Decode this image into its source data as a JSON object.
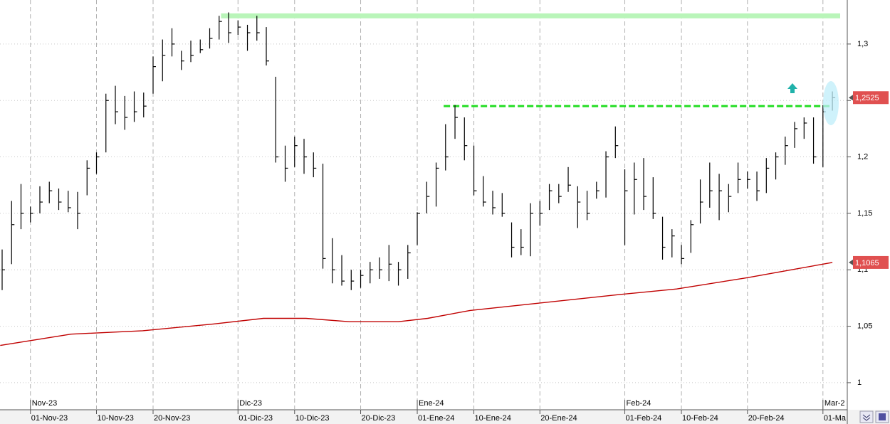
{
  "chart_data": {
    "type": "ohlc",
    "color": "#000000",
    "xlim": [
      -0.226,
      89.58
    ],
    "ylim": [
      0.976,
      1.339
    ],
    "grid": true,
    "xticks": [
      {
        "value": 3,
        "label": "01-Nov-23"
      },
      {
        "value": 10,
        "label": "10-Nov-23"
      },
      {
        "value": 16,
        "label": "20-Nov-23"
      },
      {
        "value": 25,
        "label": "01-Dic-23"
      },
      {
        "value": 31,
        "label": "10-Dic-23"
      },
      {
        "value": 38,
        "label": "20-Dic-23"
      },
      {
        "value": 44,
        "label": "01-Ene-24"
      },
      {
        "value": 50,
        "label": "10-Ene-24"
      },
      {
        "value": 57,
        "label": "20-Ene-24"
      },
      {
        "value": 66,
        "label": "01-Feb-24"
      },
      {
        "value": 72,
        "label": "10-Feb-24"
      },
      {
        "value": 79,
        "label": "20-Feb-24"
      },
      {
        "value": 87,
        "label": "01-Ma"
      }
    ],
    "month_ticks": [
      {
        "value": 3,
        "label": "Nov-23"
      },
      {
        "value": 25,
        "label": "Dic-23"
      },
      {
        "value": 44,
        "label": "Ene-24"
      },
      {
        "value": 66,
        "label": "Feb-24"
      },
      {
        "value": 87,
        "label": "Mar-2"
      }
    ],
    "yticks": [
      {
        "value": 1,
        "label": "1"
      },
      {
        "value": 1.05,
        "label": "1,05"
      },
      {
        "value": 1.1,
        "label": "1,1"
      },
      {
        "value": 1.15,
        "label": "1,15"
      },
      {
        "value": 1.2,
        "label": "1,2"
      },
      {
        "value": 1.25,
        "label": "1,25"
      },
      {
        "value": 1.3,
        "label": "1,3"
      }
    ],
    "high": [
      1.118,
      1.161,
      1.176,
      1.156,
      1.174,
      1.178,
      1.172,
      1.17,
      1.169,
      1.197,
      1.204,
      1.256,
      1.263,
      1.254,
      1.258,
      1.257,
      1.289,
      1.304,
      1.314,
      1.294,
      1.303,
      1.304,
      1.314,
      1.325,
      1.328,
      1.321,
      1.317,
      1.325,
      1.315,
      1.271,
      1.21,
      1.218,
      1.216,
      1.204,
      1.194,
      1.128,
      1.113,
      1.1,
      1.1,
      1.107,
      1.111,
      1.122,
      1.107,
      1.122,
      1.151,
      1.178,
      1.195,
      1.229,
      1.246,
      1.235,
      1.21,
      1.183,
      1.17,
      1.168,
      1.142,
      1.136,
      1.159,
      1.161,
      1.176,
      1.176,
      1.191,
      1.174,
      1.17,
      1.178,
      1.205,
      1.227,
      1.189,
      1.195,
      1.199,
      1.182,
      1.147,
      1.136,
      1.122,
      1.144,
      1.18,
      1.195,
      1.185,
      1.176,
      1.195,
      1.187,
      1.187,
      1.199,
      1.204,
      1.218,
      1.231,
      1.235,
      1.235,
      1.246,
      1.258
    ],
    "low": [
      1.082,
      1.105,
      1.136,
      1.142,
      1.15,
      1.159,
      1.153,
      1.151,
      1.136,
      1.166,
      1.185,
      1.204,
      1.229,
      1.224,
      1.231,
      1.235,
      1.256,
      1.267,
      1.289,
      1.277,
      1.284,
      1.292,
      1.296,
      1.304,
      1.301,
      1.308,
      1.294,
      1.303,
      1.281,
      1.195,
      1.178,
      1.191,
      1.185,
      1.182,
      1.101,
      1.088,
      1.086,
      1.082,
      1.084,
      1.088,
      1.092,
      1.09,
      1.086,
      1.092,
      1.122,
      1.15,
      1.156,
      1.188,
      1.216,
      1.197,
      1.166,
      1.156,
      1.149,
      1.147,
      1.111,
      1.113,
      1.112,
      1.139,
      1.153,
      1.159,
      1.169,
      1.137,
      1.144,
      1.163,
      1.164,
      1.199,
      1.122,
      1.149,
      1.153,
      1.145,
      1.109,
      1.111,
      1.105,
      1.115,
      1.141,
      1.155,
      1.144,
      1.151,
      1.168,
      1.172,
      1.161,
      1.168,
      1.18,
      1.193,
      1.208,
      1.216,
      1.194,
      1.191,
      1.241
    ],
    "close": [
      1.1,
      1.14,
      1.15,
      1.15,
      1.16,
      1.17,
      1.16,
      1.155,
      1.15,
      1.19,
      1.2,
      1.25,
      1.24,
      1.235,
      1.24,
      1.245,
      1.28,
      1.29,
      1.3,
      1.285,
      1.29,
      1.295,
      1.305,
      1.32,
      1.31,
      1.315,
      1.31,
      1.31,
      1.285,
      1.2,
      1.19,
      1.21,
      1.2,
      1.19,
      1.11,
      1.1,
      1.09,
      1.09,
      1.095,
      1.1,
      1.1,
      1.105,
      1.1,
      1.115,
      1.15,
      1.165,
      1.19,
      1.2,
      1.235,
      1.21,
      1.17,
      1.16,
      1.155,
      1.15,
      1.12,
      1.12,
      1.15,
      1.15,
      1.17,
      1.165,
      1.175,
      1.16,
      1.15,
      1.17,
      1.2,
      1.21,
      1.17,
      1.18,
      1.165,
      1.15,
      1.12,
      1.13,
      1.11,
      1.14,
      1.16,
      1.17,
      1.17,
      1.165,
      1.18,
      1.18,
      1.17,
      1.19,
      1.2,
      1.21,
      1.225,
      1.23,
      1.2,
      1.24,
      1.2525
    ],
    "moving_average": {
      "color": "#c00000",
      "x": [
        -0.2,
        7.3,
        14.9,
        22.4,
        27.7,
        32.2,
        36.8,
        42,
        45.1,
        49.6,
        56.4,
        65.4,
        71.5,
        79,
        88
      ],
      "values": [
        1.033,
        1.043,
        1.046,
        1.052,
        1.057,
        1.057,
        1.054,
        1.054,
        1.057,
        1.064,
        1.07,
        1.078,
        1.083,
        1.093,
        1.1065
      ]
    },
    "levels": [
      {
        "value": 1.325,
        "color": "#b9f5b9"
      },
      {
        "value": 1.245,
        "color": "#22dd22"
      }
    ],
    "price_tags": [
      {
        "value": 1.2525,
        "label": "1,2525",
        "color": "#e05050"
      },
      {
        "value": 1.1065,
        "label": "1,1065",
        "color": "#e05050"
      }
    ]
  }
}
